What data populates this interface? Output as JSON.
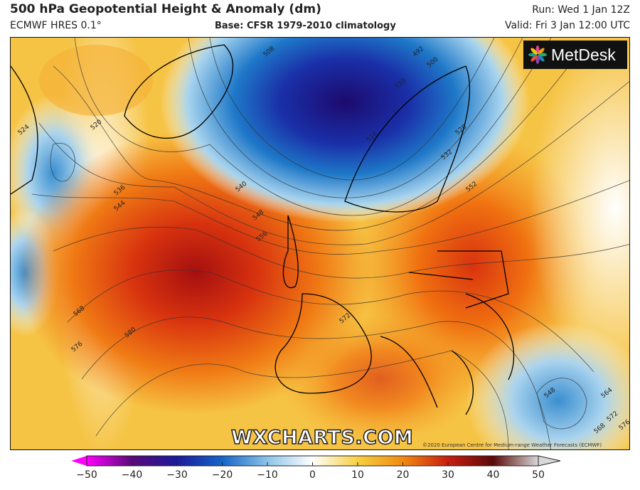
{
  "header": {
    "title": "500 hPa Geopotential Height & Anomaly (dm)",
    "model": "ECMWF HRES 0.1°",
    "base": "Base: CFSR 1979-2010 climatology",
    "run": "Run: Wed 1 Jan 12Z",
    "valid": "Valid: Fri 3 Jan 12:00 UTC"
  },
  "map": {
    "logo": "MetDesk",
    "watermark": "WXCHARTS.COM",
    "copyright": "©2020 European Centre for Medium-range Weather Forecasts (ECMWF)",
    "contour_labels": [
      "524",
      "520",
      "536",
      "544",
      "540",
      "548",
      "556",
      "568",
      "576",
      "580",
      "572",
      "508",
      "492",
      "500",
      "516",
      "510",
      "528",
      "532",
      "552",
      "548",
      "564",
      "568",
      "572",
      "576"
    ]
  },
  "colorbar": {
    "ticks": [
      "−50",
      "−40",
      "−30",
      "−20",
      "−10",
      "0",
      "10",
      "20",
      "30",
      "40",
      "50"
    ],
    "colors": [
      "#ff00ff",
      "#5a0a78",
      "#1a1a9a",
      "#1565c8",
      "#8cc4e8",
      "#ffffff",
      "#f7d040",
      "#f08a10",
      "#c81e10",
      "#5a0a0a",
      "#d8d8d8"
    ]
  }
}
